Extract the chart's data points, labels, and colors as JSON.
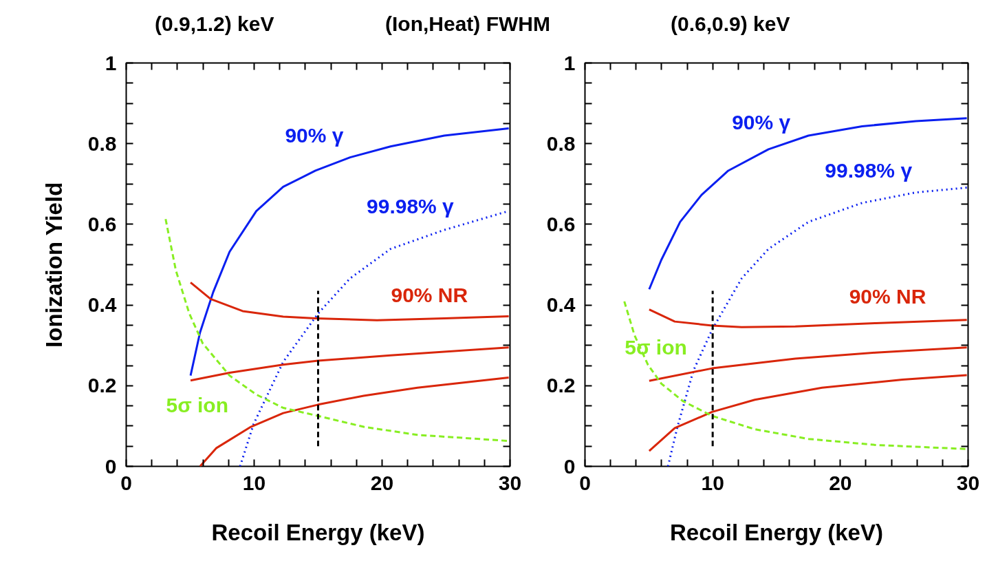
{
  "chart_data": [
    {
      "type": "line",
      "title": "(0.9,1.2) keV",
      "annotations": [
        "(Ion,Heat) FWHM"
      ],
      "xlabel": "Recoil Energy (keV)",
      "ylabel": "Ionization Yield",
      "xlim": [
        0,
        30
      ],
      "ylim": [
        0,
        1
      ],
      "xticks": [
        0,
        {
          "value": 2,
          "label": null
        },
        {
          "value": 4,
          "label": null
        },
        {
          "value": 6,
          "label": null
        },
        {
          "value": 8,
          "label": null
        },
        10,
        {
          "value": 12,
          "label": null
        },
        {
          "value": 14,
          "label": null
        },
        {
          "value": 16,
          "label": null
        },
        {
          "value": 18,
          "label": null
        },
        20,
        {
          "value": 22,
          "label": null
        },
        {
          "value": 24,
          "label": null
        },
        {
          "value": 26,
          "label": null
        },
        {
          "value": 28,
          "label": null
        },
        30
      ],
      "yticks": [
        0,
        {
          "value": 0.05,
          "label": null
        },
        {
          "value": 0.1,
          "label": null
        },
        {
          "value": 0.15,
          "label": null
        },
        0.2,
        {
          "value": 0.25,
          "label": null
        },
        {
          "value": 0.3,
          "label": null
        },
        {
          "value": 0.35,
          "label": null
        },
        0.4,
        {
          "value": 0.45,
          "label": null
        },
        {
          "value": 0.5,
          "label": null
        },
        {
          "value": 0.55,
          "label": null
        },
        0.6,
        {
          "value": 0.65,
          "label": null
        },
        {
          "value": 0.7,
          "label": null
        },
        {
          "value": 0.75,
          "label": null
        },
        0.8,
        {
          "value": 0.85,
          "label": null
        },
        {
          "value": 0.9,
          "label": null
        },
        {
          "value": 0.95,
          "label": null
        },
        1
      ],
      "grid": false,
      "series": [
        {
          "name": "90% γ",
          "color": "#0a1ff0",
          "line_style": "solid",
          "x": [
            5.03,
            5.77,
            6.8,
            8.08,
            10.17,
            12.27,
            14.79,
            17.5,
            20.66,
            24.86,
            29.9
          ],
          "values": [
            0.225,
            0.332,
            0.432,
            0.532,
            0.633,
            0.693,
            0.733,
            0.766,
            0.793,
            0.82,
            0.838
          ]
        },
        {
          "name": "99.98% γ",
          "color": "#0a1ff0",
          "line_style": "dotted",
          "x": [
            8.9,
            9.96,
            12.27,
            15,
            17.5,
            20.66,
            24.86,
            29.9
          ],
          "values": [
            0,
            0.105,
            0.259,
            0.379,
            0.466,
            0.539,
            0.586,
            0.633
          ]
        },
        {
          "name": "90% NR",
          "color": "#d9260a",
          "line_style": "solid",
          "x": [
            5.03,
            6.6,
            9.1,
            12.27,
            14.79,
            19.6,
            24.86,
            29.9
          ],
          "values": [
            0.456,
            0.415,
            0.385,
            0.371,
            0.367,
            0.362,
            0.367,
            0.372
          ]
        },
        {
          "color": "#d9260a",
          "line_style": "solid",
          "x": [
            5.03,
            8.08,
            12.27,
            15,
            20.66,
            29.9
          ],
          "values": [
            0.213,
            0.232,
            0.252,
            0.262,
            0.275,
            0.295
          ]
        },
        {
          "color": "#d9260a",
          "line_style": "solid",
          "x": [
            5.77,
            7.03,
            9.75,
            12.27,
            15,
            18.56,
            22.76,
            29.9
          ],
          "values": [
            0,
            0.045,
            0.098,
            0.132,
            0.153,
            0.175,
            0.195,
            0.22
          ]
        },
        {
          "name": "5σ ion",
          "color": "#88ee22",
          "line_style": "dashed",
          "x": [
            3.08,
            3.88,
            4.93,
            5.98,
            8.08,
            10.17,
            12.27,
            15,
            18.56,
            22.76,
            29.9
          ],
          "values": [
            0.613,
            0.486,
            0.379,
            0.305,
            0.225,
            0.178,
            0.145,
            0.125,
            0.098,
            0.078,
            0.063
          ]
        },
        {
          "color": "#000000",
          "line_style": "dashed",
          "x": [
            15,
            15
          ],
          "values": [
            0.05,
            0.435
          ]
        }
      ]
    },
    {
      "type": "line",
      "title": "(0.6,0.9) keV",
      "xlabel": "Recoil Energy (keV)",
      "xlim": [
        0,
        30
      ],
      "ylim": [
        0,
        1
      ],
      "xticks": [
        0,
        {
          "value": 2,
          "label": null
        },
        {
          "value": 4,
          "label": null
        },
        {
          "value": 6,
          "label": null
        },
        {
          "value": 8,
          "label": null
        },
        10,
        {
          "value": 12,
          "label": null
        },
        {
          "value": 14,
          "label": null
        },
        {
          "value": 16,
          "label": null
        },
        {
          "value": 18,
          "label": null
        },
        20,
        {
          "value": 22,
          "label": null
        },
        {
          "value": 24,
          "label": null
        },
        {
          "value": 26,
          "label": null
        },
        {
          "value": 28,
          "label": null
        },
        30
      ],
      "yticks": [
        0,
        {
          "value": 0.05,
          "label": null
        },
        {
          "value": 0.1,
          "label": null
        },
        {
          "value": 0.15,
          "label": null
        },
        0.2,
        {
          "value": 0.25,
          "label": null
        },
        {
          "value": 0.3,
          "label": null
        },
        {
          "value": 0.35,
          "label": null
        },
        0.4,
        {
          "value": 0.45,
          "label": null
        },
        {
          "value": 0.5,
          "label": null
        },
        {
          "value": 0.55,
          "label": null
        },
        0.6,
        {
          "value": 0.65,
          "label": null
        },
        {
          "value": 0.7,
          "label": null
        },
        {
          "value": 0.75,
          "label": null
        },
        0.8,
        {
          "value": 0.85,
          "label": null
        },
        {
          "value": 0.9,
          "label": null
        },
        {
          "value": 0.95,
          "label": null
        },
        1
      ],
      "grid": false,
      "series": [
        {
          "name": "90% γ",
          "color": "#0a1ff0",
          "line_style": "solid",
          "x": [
            5.03,
            5.98,
            7.45,
            9.13,
            11.22,
            14.37,
            17.5,
            21.7,
            25.9,
            29.9
          ],
          "values": [
            0.439,
            0.512,
            0.606,
            0.673,
            0.733,
            0.786,
            0.82,
            0.843,
            0.856,
            0.863
          ]
        },
        {
          "name": "99.98% γ",
          "color": "#0a1ff0",
          "line_style": "dotted",
          "x": [
            6.5,
            7.24,
            8.5,
            9.96,
            12.27,
            14.37,
            17.5,
            21.7,
            25.9,
            29.9
          ],
          "values": [
            0,
            0.098,
            0.238,
            0.339,
            0.466,
            0.539,
            0.606,
            0.653,
            0.679,
            0.691
          ]
        },
        {
          "name": "90% NR",
          "color": "#d9260a",
          "line_style": "solid",
          "x": [
            5.03,
            7.03,
            9.96,
            12.27,
            16.47,
            22.76,
            29.9
          ],
          "values": [
            0.389,
            0.359,
            0.349,
            0.345,
            0.347,
            0.355,
            0.363
          ]
        },
        {
          "color": "#d9260a",
          "line_style": "solid",
          "x": [
            5.03,
            9.96,
            16.47,
            22.76,
            29.9
          ],
          "values": [
            0.212,
            0.243,
            0.267,
            0.282,
            0.295
          ]
        },
        {
          "color": "#d9260a",
          "line_style": "solid",
          "x": [
            5.03,
            7.03,
            9.96,
            13.3,
            18.56,
            24.86,
            29.9
          ],
          "values": [
            0.038,
            0.095,
            0.135,
            0.165,
            0.195,
            0.215,
            0.226
          ]
        },
        {
          "name": "5σ ion",
          "color": "#88ee22",
          "line_style": "dashed",
          "x": [
            3.08,
            3.88,
            4.93,
            5.98,
            7.66,
            9.96,
            13.3,
            17.5,
            22.76,
            29.9
          ],
          "values": [
            0.409,
            0.325,
            0.252,
            0.205,
            0.162,
            0.125,
            0.092,
            0.068,
            0.053,
            0.043
          ]
        },
        {
          "color": "#000000",
          "line_style": "dashed",
          "x": [
            10,
            10
          ],
          "values": [
            0.05,
            0.435
          ]
        }
      ]
    }
  ]
}
